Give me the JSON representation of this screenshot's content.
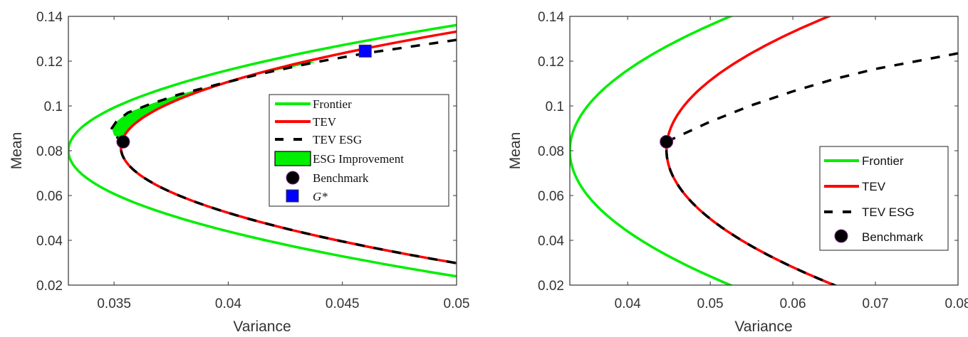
{
  "colors": {
    "frontier": "#00ee00",
    "tev": "#ff0000",
    "esg": "#000000",
    "fill": "#00ee00",
    "benchmark": "#000000",
    "gstar": "#0000ff"
  },
  "chart_data": [
    {
      "type": "line",
      "xlabel": "Variance",
      "ylabel": "Mean",
      "xlim": [
        0.033,
        0.05
      ],
      "ylim": [
        0.02,
        0.14
      ],
      "xticks": [
        "0.035",
        "0.04",
        "0.045",
        "0.05"
      ],
      "xtick_values": [
        0.035,
        0.04,
        0.045,
        0.05
      ],
      "yticks": [
        "0.02",
        "0.04",
        "0.06",
        "0.08",
        "0.1",
        "0.12",
        "0.14"
      ],
      "ytick_values": [
        0.02,
        0.04,
        0.06,
        0.08,
        0.1,
        0.12,
        0.14
      ],
      "legend_placement": "center-right",
      "legend": [
        "Frontier",
        "TEV",
        "TEV ESG",
        "ESG Improvement",
        "Benchmark",
        "G*"
      ],
      "series": [
        {
          "name": "Frontier",
          "kind": "parabola",
          "min_variance": 0.033,
          "at_mean": 0.08,
          "curvature": 5.4
        },
        {
          "name": "TEV",
          "kind": "parabola",
          "min_variance": 0.0353,
          "at_mean": 0.0815,
          "curvature": 5.5
        },
        {
          "name": "TEV ESG",
          "kind": "points",
          "lower_follows": "TEV",
          "points": [
            [
              0.0354,
              0.084
            ],
            [
              0.035,
              0.087
            ],
            [
              0.0349,
              0.09
            ],
            [
              0.0351,
              0.093
            ],
            [
              0.0356,
              0.097
            ],
            [
              0.0365,
              0.1005
            ],
            [
              0.0378,
              0.105
            ],
            [
              0.0395,
              0.1095
            ],
            [
              0.0415,
              0.1145
            ],
            [
              0.0438,
              0.1195
            ],
            [
              0.046,
              0.1235
            ],
            [
              0.048,
              0.1265
            ],
            [
              0.05,
              0.1295
            ]
          ]
        }
      ],
      "fill": {
        "name": "ESG Improvement",
        "between": [
          "TEV ESG",
          "TEV"
        ],
        "mean_range": [
          0.084,
          0.12
        ]
      },
      "markers": [
        {
          "name": "Benchmark",
          "x": 0.0354,
          "y": 0.084,
          "shape": "circle"
        },
        {
          "name": "G*",
          "x": 0.046,
          "y": 0.1245,
          "shape": "square"
        }
      ]
    },
    {
      "type": "line",
      "xlabel": "Variance",
      "ylabel": "Mean",
      "xlim": [
        0.033,
        0.08
      ],
      "ylim": [
        0.02,
        0.14
      ],
      "xticks": [
        "0.04",
        "0.05",
        "0.06",
        "0.07",
        "0.08"
      ],
      "xtick_values": [
        0.04,
        0.05,
        0.06,
        0.07,
        0.08
      ],
      "yticks": [
        "0.02",
        "0.04",
        "0.06",
        "0.08",
        "0.1",
        "0.12",
        "0.14"
      ],
      "ytick_values": [
        0.02,
        0.04,
        0.06,
        0.08,
        0.1,
        0.12,
        0.14
      ],
      "legend_placement": "center-right",
      "legend": [
        "Frontier",
        "TEV",
        "TEV ESG",
        "Benchmark"
      ],
      "series": [
        {
          "name": "Frontier",
          "kind": "parabola",
          "min_variance": 0.033,
          "at_mean": 0.08,
          "curvature": 5.4
        },
        {
          "name": "TEV",
          "kind": "parabola",
          "min_variance": 0.0447,
          "at_mean": 0.0805,
          "curvature": 5.55
        },
        {
          "name": "TEV ESG",
          "kind": "points",
          "lower_follows": "TEV",
          "points": [
            [
              0.0447,
              0.084
            ],
            [
              0.05,
              0.093
            ],
            [
              0.055,
              0.1003
            ],
            [
              0.06,
              0.1065
            ],
            [
              0.065,
              0.112
            ],
            [
              0.07,
              0.1165
            ],
            [
              0.075,
              0.12
            ],
            [
              0.08,
              0.1235
            ]
          ]
        }
      ],
      "markers": [
        {
          "name": "Benchmark",
          "x": 0.0447,
          "y": 0.084,
          "shape": "circle"
        }
      ]
    }
  ]
}
